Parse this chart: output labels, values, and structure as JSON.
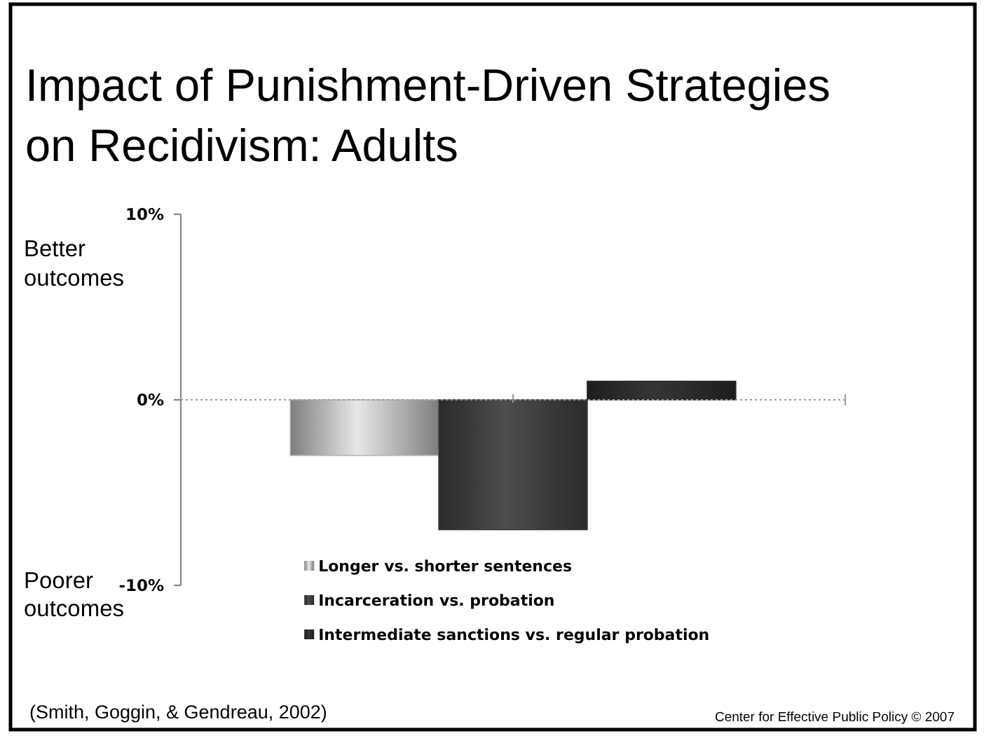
{
  "chart_data": {
    "type": "bar",
    "title": "Impact of Punishment-Driven Strategies on Recidivism: Adults",
    "categories": [
      null
    ],
    "series": [
      {
        "name": "Longer vs. shorter sentences",
        "color": "#b4b4b4",
        "values": [
          -3
        ]
      },
      {
        "name": "Incarceration vs. probation",
        "color": "#3c3c3c",
        "values": [
          -7
        ]
      },
      {
        "name": "Intermediate sanctions vs. regular probation",
        "color": "#2a2a2a",
        "values": [
          1
        ]
      }
    ],
    "ylim": [
      -10,
      10
    ],
    "yticks": [
      {
        "value": 10,
        "label": "10%"
      },
      {
        "value": 0,
        "label": "0%"
      },
      {
        "value": -10,
        "label": "-10%"
      }
    ],
    "legend": "bottom",
    "annotations": [
      "Better outcomes",
      "Poorer outcomes",
      "(Smith, Goggin, & Gendreau, 2002)",
      "Center for Effective Public Policy © 2007"
    ]
  }
}
